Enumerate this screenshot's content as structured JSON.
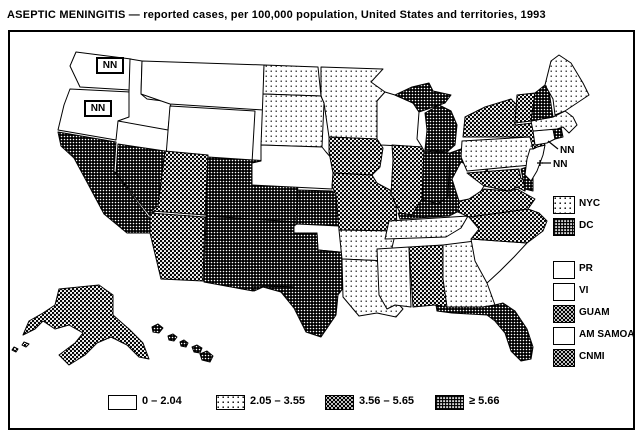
{
  "title": "ASEPTIC MENINGITIS — reported cases, per 100,000 population, United States and territories, 1993",
  "legend": {
    "classes": [
      {
        "id": "c1",
        "label": "0 – 2.04"
      },
      {
        "id": "c2",
        "label": "2.05 – 3.55"
      },
      {
        "id": "c3",
        "label": "3.56 – 5.65"
      },
      {
        "id": "c4",
        "label": "≥ 5.66"
      }
    ]
  },
  "territory_legend": [
    {
      "id": "nyc",
      "label": "NYC",
      "class": "c2"
    },
    {
      "id": "dc",
      "label": "DC",
      "class": "c4"
    },
    {
      "id": "pr",
      "label": "PR",
      "class": "c1"
    },
    {
      "id": "vi",
      "label": "VI",
      "class": "c1"
    },
    {
      "id": "guam",
      "label": "GUAM",
      "class": "c3"
    },
    {
      "id": "am-samoa",
      "label": "AM SAMOA",
      "class": "c1"
    },
    {
      "id": "cnmi",
      "label": "CNMI",
      "class": "c3"
    }
  ],
  "annotations": {
    "not_notifiable_label": "NN",
    "boxed_on_states": [
      "Washington",
      "Oregon"
    ],
    "callouts_near": [
      "New York City area",
      "New Jersey"
    ]
  },
  "chart_data": {
    "type": "choropleth",
    "title": "ASEPTIC MENINGITIS — reported cases, per 100,000 population, United States and territories, 1993",
    "unit": "reported cases per 100,000 population",
    "year": "1993",
    "class_ranges": [
      "0 – 2.04",
      "2.05 – 3.55",
      "3.56 – 5.65",
      "≥ 5.66"
    ],
    "areas": [
      {
        "id": "wa",
        "name": "Washington",
        "class": "c1",
        "note": "NN"
      },
      {
        "id": "or",
        "name": "Oregon",
        "class": "c1",
        "note": "NN"
      },
      {
        "id": "ca",
        "name": "California",
        "class": "c4"
      },
      {
        "id": "nv",
        "name": "Nevada",
        "class": "c4"
      },
      {
        "id": "id",
        "name": "Idaho",
        "class": "c1"
      },
      {
        "id": "mt",
        "name": "Montana",
        "class": "c1"
      },
      {
        "id": "wy",
        "name": "Wyoming",
        "class": "c1"
      },
      {
        "id": "ut",
        "name": "Utah",
        "class": "c3"
      },
      {
        "id": "az",
        "name": "Arizona",
        "class": "c3"
      },
      {
        "id": "co",
        "name": "Colorado",
        "class": "c4"
      },
      {
        "id": "nm",
        "name": "New Mexico",
        "class": "c4"
      },
      {
        "id": "nd",
        "name": "North Dakota",
        "class": "c2"
      },
      {
        "id": "sd",
        "name": "South Dakota",
        "class": "c2"
      },
      {
        "id": "ne",
        "name": "Nebraska",
        "class": "c1"
      },
      {
        "id": "ks",
        "name": "Kansas",
        "class": "c4"
      },
      {
        "id": "ok",
        "name": "Oklahoma",
        "class": "c1"
      },
      {
        "id": "tx",
        "name": "Texas",
        "class": "c4"
      },
      {
        "id": "mn",
        "name": "Minnesota",
        "class": "c2"
      },
      {
        "id": "ia",
        "name": "Iowa",
        "class": "c3"
      },
      {
        "id": "mo",
        "name": "Missouri",
        "class": "c3"
      },
      {
        "id": "ar",
        "name": "Arkansas",
        "class": "c2"
      },
      {
        "id": "la",
        "name": "Louisiana",
        "class": "c2"
      },
      {
        "id": "wi",
        "name": "Wisconsin",
        "class": "c1"
      },
      {
        "id": "il",
        "name": "Illinois",
        "class": "c3"
      },
      {
        "id": "mi",
        "name": "Michigan",
        "class": "c4"
      },
      {
        "id": "in",
        "name": "Indiana",
        "class": "c4"
      },
      {
        "id": "oh",
        "name": "Ohio",
        "class": "c4"
      },
      {
        "id": "ky",
        "name": "Kentucky",
        "class": "c4"
      },
      {
        "id": "tn",
        "name": "Tennessee",
        "class": "c2"
      },
      {
        "id": "ms",
        "name": "Mississippi",
        "class": "c2"
      },
      {
        "id": "al",
        "name": "Alabama",
        "class": "c3"
      },
      {
        "id": "ga",
        "name": "Georgia",
        "class": "c2"
      },
      {
        "id": "fl",
        "name": "Florida",
        "class": "c4"
      },
      {
        "id": "sc",
        "name": "South Carolina",
        "class": "c1"
      },
      {
        "id": "nc",
        "name": "North Carolina",
        "class": "c3"
      },
      {
        "id": "va",
        "name": "Virginia",
        "class": "c3"
      },
      {
        "id": "wv",
        "name": "West Virginia",
        "class": "c1"
      },
      {
        "id": "md",
        "name": "Maryland",
        "class": "c3"
      },
      {
        "id": "de",
        "name": "Delaware",
        "class": "c4"
      },
      {
        "id": "pa",
        "name": "Pennsylvania",
        "class": "c2"
      },
      {
        "id": "nj",
        "name": "New Jersey",
        "class": "c1",
        "note": "NN"
      },
      {
        "id": "ny",
        "name": "New York",
        "class": "c3"
      },
      {
        "id": "ct",
        "name": "Connecticut",
        "class": "c1"
      },
      {
        "id": "ri",
        "name": "Rhode Island",
        "class": "c4"
      },
      {
        "id": "ma",
        "name": "Massachusetts",
        "class": "c2"
      },
      {
        "id": "vt",
        "name": "Vermont",
        "class": "c3"
      },
      {
        "id": "nh",
        "name": "New Hampshire",
        "class": "c4"
      },
      {
        "id": "me",
        "name": "Maine",
        "class": "c2"
      },
      {
        "id": "ak",
        "name": "Alaska",
        "class": "c3"
      },
      {
        "id": "hi",
        "name": "Hawaii",
        "class": "c4"
      }
    ],
    "territories": [
      {
        "name": "New York City",
        "class": "c2"
      },
      {
        "name": "District of Columbia",
        "class": "c4"
      },
      {
        "name": "Puerto Rico",
        "class": "c1"
      },
      {
        "name": "Virgin Islands",
        "class": "c1"
      },
      {
        "name": "Guam",
        "class": "c3"
      },
      {
        "name": "American Samoa",
        "class": "c1"
      },
      {
        "name": "Commonwealth of Northern Mariana Islands",
        "class": "c3"
      }
    ]
  }
}
